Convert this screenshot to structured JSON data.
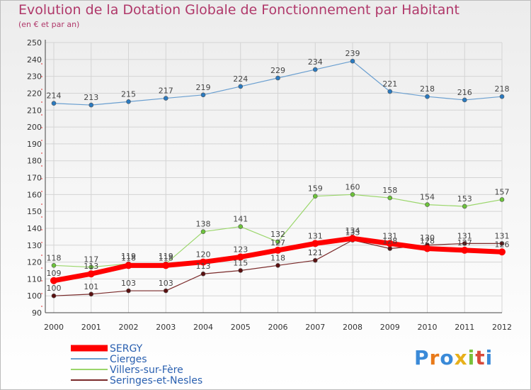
{
  "chart_data": {
    "type": "line",
    "title": "Evolution de la Dotation Globale de Fonctionnement par Habitant",
    "subtitle": "(en € et par an)",
    "x": [
      "2000",
      "2001",
      "2002",
      "2003",
      "2004",
      "2005",
      "2006",
      "2007",
      "2008",
      "2009",
      "2010",
      "2011",
      "2012"
    ],
    "yticks": [
      90,
      100,
      110,
      120,
      130,
      140,
      150,
      160,
      170,
      180,
      190,
      200,
      210,
      220,
      230,
      240,
      250
    ],
    "ylim": [
      90,
      250
    ],
    "grid": true,
    "legend_position": "bottom-left",
    "series": [
      {
        "name": "Cierges",
        "color": "#6a9fd0",
        "marker": "#2a7ac0",
        "width": 1.2,
        "values": [
          214,
          213,
          215,
          217,
          219,
          224,
          229,
          234,
          239,
          221,
          218,
          216,
          218
        ]
      },
      {
        "name": "Villers-sur-Fère",
        "color": "#9ad66a",
        "marker": "#6cc23a",
        "width": 1.2,
        "values": [
          118,
          117,
          119,
          119,
          138,
          141,
          132,
          159,
          160,
          158,
          154,
          153,
          157
        ]
      },
      {
        "name": "Seringes-et-Nesles",
        "color": "#7a2a2a",
        "marker": "#5a1010",
        "width": 1.2,
        "values": [
          100,
          101,
          103,
          103,
          113,
          115,
          118,
          121,
          133,
          128,
          130,
          131,
          131
        ]
      },
      {
        "name": "SERGY",
        "color": "#ff0000",
        "marker": "#ff0000",
        "width": 7,
        "values": [
          109,
          113,
          118,
          118,
          120,
          123,
          127,
          131,
          134,
          131,
          128,
          127,
          126
        ]
      }
    ],
    "legend_order": [
      "SERGY",
      "Cierges",
      "Villers-sur-Fère",
      "Seringes-et-Nesles"
    ]
  },
  "logo": {
    "letters": [
      "P",
      "r",
      "o",
      "x",
      "i",
      "t",
      "i"
    ],
    "colors": [
      "#3a8ad8",
      "#e87a1a",
      "#3a8ad8",
      "#e8b01a",
      "#7ac03a",
      "#d84a3a",
      "#3a8ad8"
    ]
  }
}
